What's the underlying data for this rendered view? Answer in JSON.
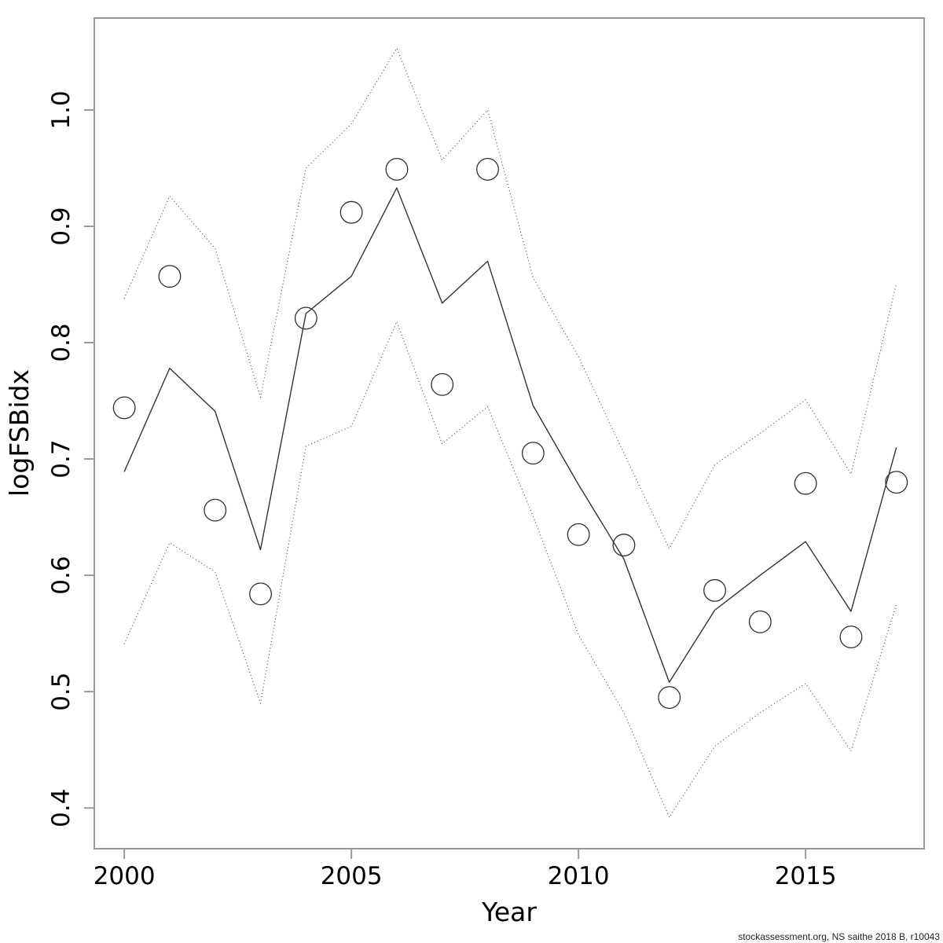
{
  "figure": {
    "xlabel": "Year",
    "ylabel": "logFSBidx",
    "watermark": "stockassessment.org, NS saithe 2018 B, r10043"
  },
  "chart_data": {
    "type": "line",
    "title": "",
    "xlabel": "Year",
    "ylabel": "logFSBidx",
    "x": [
      2000,
      2001,
      2002,
      2003,
      2004,
      2005,
      2006,
      2007,
      2008,
      2009,
      2010,
      2011,
      2012,
      2013,
      2014,
      2015,
      2016,
      2017
    ],
    "series": [
      {
        "name": "observed-index",
        "style": "points-circle",
        "values": [
          0.744,
          0.857,
          0.656,
          0.584,
          0.821,
          0.912,
          0.949,
          0.764,
          0.949,
          0.705,
          0.635,
          0.626,
          0.495,
          0.587,
          0.56,
          0.679,
          0.547,
          0.68
        ]
      },
      {
        "name": "fitted-index",
        "style": "solid-line",
        "values": [
          0.689,
          0.778,
          0.741,
          0.622,
          0.825,
          0.857,
          0.933,
          0.834,
          0.87,
          0.746,
          0.678,
          0.614,
          0.508,
          0.57,
          0.6,
          0.629,
          0.569,
          0.71
        ]
      },
      {
        "name": "ci-upper",
        "style": "dotted-line",
        "values": [
          0.838,
          0.926,
          0.881,
          0.753,
          0.95,
          0.988,
          1.053,
          0.957,
          1.0,
          0.856,
          0.788,
          0.705,
          0.623,
          0.695,
          0.722,
          0.751,
          0.687,
          0.851
        ]
      },
      {
        "name": "ci-lower",
        "style": "dotted-line",
        "values": [
          0.541,
          0.628,
          0.603,
          0.49,
          0.711,
          0.728,
          0.818,
          0.713,
          0.745,
          0.651,
          0.549,
          0.482,
          0.392,
          0.453,
          0.482,
          0.507,
          0.449,
          0.575
        ]
      }
    ],
    "xticks": [
      2000,
      2005,
      2010,
      2015
    ],
    "yticks": [
      0.4,
      0.5,
      0.6,
      0.7,
      0.8,
      0.9,
      1.0
    ],
    "xlim": [
      1999.34,
      2017.61
    ],
    "ylim": [
      0.365,
      1.079
    ],
    "grid": false,
    "legend": "none",
    "marker_radius": 13.8,
    "colors": {
      "frame": "#999999",
      "line": "#333333",
      "text": "#000000"
    }
  }
}
